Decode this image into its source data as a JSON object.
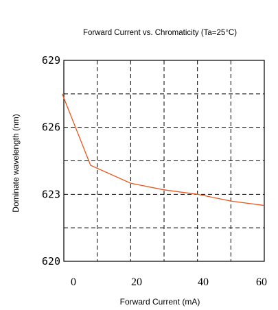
{
  "chart_data": {
    "type": "line",
    "title": "Forward Current vs. Chromaticity (Ta=25°C)",
    "xlabel": "Forward  Current  (mA)",
    "ylabel": "Dominate wavelength (nm)",
    "xlim": [
      0,
      60
    ],
    "ylim": [
      620,
      629
    ],
    "xticks": [
      "0",
      "20",
      "40",
      "60"
    ],
    "yticks": [
      "620",
      "623",
      "626",
      "629"
    ],
    "grid": true,
    "colors": {
      "line": "#e8561c",
      "grid": "#000000",
      "frame": "#000000"
    },
    "series": [
      {
        "x": [
          -0.5,
          8,
          20,
          30,
          40,
          50,
          60
        ],
        "y": [
          627.5,
          624.3,
          623.5,
          623.2,
          623.0,
          622.7,
          622.5
        ]
      }
    ]
  }
}
